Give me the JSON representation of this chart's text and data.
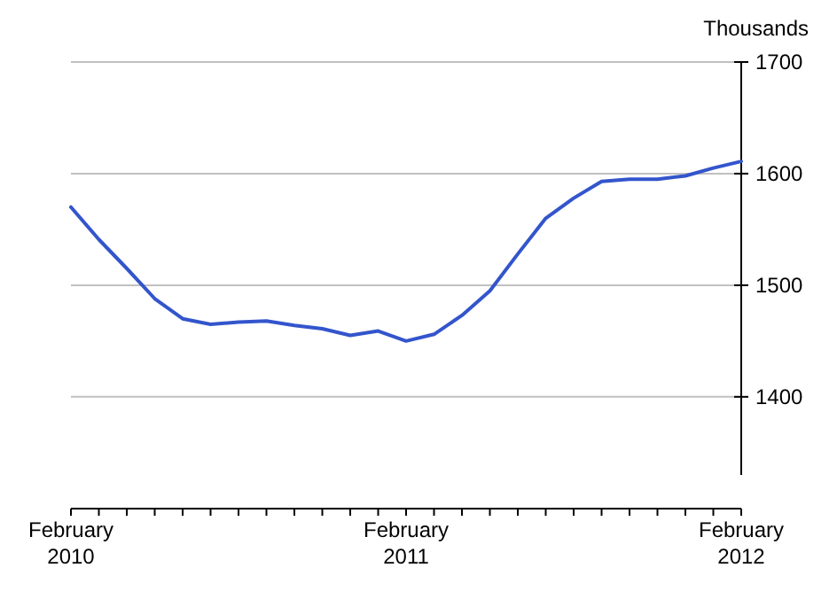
{
  "chart_data": {
    "type": "line",
    "ylabel": "Thousands",
    "categories": [
      "February 2010",
      null,
      null,
      null,
      null,
      null,
      null,
      null,
      null,
      null,
      null,
      null,
      "February 2011",
      null,
      null,
      null,
      null,
      null,
      null,
      null,
      null,
      null,
      null,
      null,
      "February 2012"
    ],
    "series": [
      {
        "color": "#3355cc",
        "values": [
          1570,
          1541,
          1515,
          1488,
          1470,
          1465,
          1467,
          1468,
          1464,
          1461,
          1455,
          1459,
          1450,
          1456,
          1473,
          1495,
          1528,
          1560,
          1578,
          1593,
          1595,
          1595,
          1598,
          1605,
          1611
        ]
      }
    ],
    "ylim": [
      1330,
      1700
    ],
    "yticks": [
      1400,
      1500,
      1600,
      1700
    ],
    "grid": "y",
    "marker": "none",
    "line_style": "solid"
  }
}
